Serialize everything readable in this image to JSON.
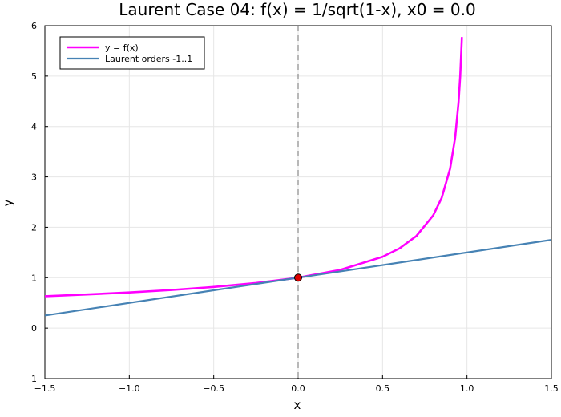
{
  "chart_data": {
    "type": "line",
    "title": "Laurent Case 04: f(x) = 1/sqrt(1-x), x0 = 0.0",
    "xlabel": "x",
    "ylabel": "y",
    "xlim": [
      -1.5,
      1.5
    ],
    "ylim": [
      -1,
      6
    ],
    "x_ticks": [
      -1.5,
      -1.0,
      -0.5,
      0.0,
      0.5,
      1.0,
      1.5
    ],
    "x_tick_labels": [
      "−1.5",
      "−1.0",
      "−0.5",
      "0.0",
      "0.5",
      "1.0",
      "1.5"
    ],
    "y_ticks": [
      -1,
      0,
      1,
      2,
      3,
      4,
      5,
      6
    ],
    "y_tick_labels": [
      "−1",
      "0",
      "1",
      "2",
      "3",
      "4",
      "5",
      "6"
    ],
    "grid": true,
    "legend_position": "top-left",
    "series": [
      {
        "name": "y = f(x)",
        "color": "#ff00ff",
        "x": [
          -1.5,
          -1.25,
          -1.0,
          -0.75,
          -0.5,
          -0.25,
          0.0,
          0.25,
          0.5,
          0.6,
          0.7,
          0.8,
          0.85,
          0.9,
          0.93,
          0.95,
          0.96,
          0.97
        ],
        "y": [
          0.632,
          0.667,
          0.707,
          0.756,
          0.816,
          0.894,
          1.0,
          1.155,
          1.414,
          1.581,
          1.826,
          2.236,
          2.582,
          3.162,
          3.78,
          4.472,
          5.0,
          5.774
        ]
      },
      {
        "name": "Laurent orders -1..1",
        "color": "#4682b4",
        "x": [
          -1.5,
          1.5
        ],
        "y": [
          0.25,
          1.75
        ]
      }
    ],
    "vline": {
      "x": 0.0,
      "style": "dashed",
      "color": "#888888"
    },
    "point": {
      "x": 0.0,
      "y": 1.0,
      "color": "#dd0000"
    }
  }
}
